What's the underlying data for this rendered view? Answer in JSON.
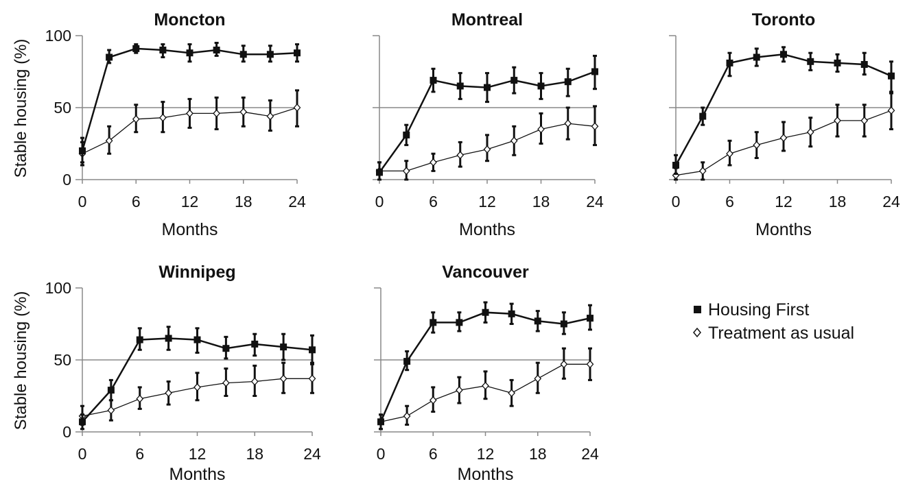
{
  "chart_data": {
    "type": "line",
    "y_axis_label": "Stable housing (%)",
    "x_axis_label": "Months",
    "y_ticks": [
      0,
      50,
      100
    ],
    "x_ticks": [
      0,
      6,
      12,
      18,
      24
    ],
    "ylim": [
      0,
      100
    ],
    "xlim": [
      0,
      24
    ],
    "reference_line_y": 50,
    "legend": {
      "placement": "right",
      "entries": [
        {
          "label": "Housing First",
          "marker": "filled-square"
        },
        {
          "label": "Treatment as usual",
          "marker": "open-diamond"
        }
      ]
    },
    "x": [
      0,
      3,
      6,
      9,
      12,
      15,
      18,
      21,
      24
    ],
    "panels": [
      {
        "title": "Moncton",
        "series": [
          {
            "name": "Housing First",
            "values": [
              20,
              85,
              91,
              90,
              88,
              90,
              87,
              87,
              88
            ],
            "err_low": [
              12,
              81,
              88,
              85,
              82,
              86,
              82,
              82,
              82
            ],
            "err_high": [
              29,
              90,
              94,
              94,
              94,
              95,
              93,
              93,
              94
            ]
          },
          {
            "name": "Treatment as usual",
            "values": [
              18,
              27,
              42,
              43,
              46,
              46,
              47,
              44,
              50
            ],
            "err_low": [
              10,
              18,
              33,
              33,
              36,
              35,
              37,
              34,
              37
            ],
            "err_high": [
              26,
              37,
              52,
              54,
              56,
              57,
              57,
              55,
              62
            ]
          }
        ]
      },
      {
        "title": "Montreal",
        "series": [
          {
            "name": "Housing First",
            "values": [
              5,
              31,
              69,
              65,
              64,
              69,
              65,
              68,
              75
            ],
            "err_low": [
              0,
              24,
              61,
              56,
              54,
              60,
              56,
              58,
              63
            ],
            "err_high": [
              12,
              38,
              77,
              74,
              74,
              78,
              74,
              77,
              86
            ]
          },
          {
            "name": "Treatment as usual",
            "values": [
              6,
              6,
              12,
              17,
              21,
              27,
              35,
              39,
              37
            ],
            "err_low": [
              0,
              0,
              6,
              9,
              13,
              17,
              25,
              28,
              24
            ],
            "err_high": [
              12,
              13,
              18,
              26,
              31,
              37,
              46,
              50,
              51
            ]
          }
        ]
      },
      {
        "title": "Toronto",
        "series": [
          {
            "name": "Housing First",
            "values": [
              10,
              44,
              81,
              85,
              87,
              82,
              81,
              80,
              72
            ],
            "err_low": [
              4,
              38,
              72,
              79,
              82,
              76,
              75,
              73,
              61
            ],
            "err_high": [
              17,
              50,
              88,
              91,
              92,
              88,
              87,
              88,
              82
            ]
          },
          {
            "name": "Treatment as usual",
            "values": [
              3,
              6,
              18,
              24,
              29,
              33,
              41,
              41,
              48
            ],
            "err_low": [
              0,
              0,
              10,
              15,
              20,
              23,
              30,
              30,
              35
            ],
            "err_high": [
              8,
              12,
              27,
              33,
              40,
              43,
              52,
              52,
              60
            ]
          }
        ]
      },
      {
        "title": "Winnipeg",
        "series": [
          {
            "name": "Housing First",
            "values": [
              7,
              29,
              64,
              65,
              64,
              58,
              61,
              59,
              57
            ],
            "err_low": [
              2,
              22,
              57,
              57,
              55,
              51,
              53,
              50,
              47
            ],
            "err_high": [
              12,
              36,
              72,
              73,
              72,
              66,
              68,
              68,
              67
            ]
          },
          {
            "name": "Treatment as usual",
            "values": [
              11,
              15,
              23,
              27,
              31,
              34,
              35,
              37,
              37
            ],
            "err_low": [
              5,
              8,
              16,
              19,
              22,
              25,
              25,
              27,
              27
            ],
            "err_high": [
              18,
              22,
              31,
              35,
              41,
              44,
              46,
              48,
              48
            ]
          }
        ]
      },
      {
        "title": "Vancouver",
        "series": [
          {
            "name": "Housing First",
            "values": [
              7,
              49,
              76,
              76,
              83,
              82,
              77,
              75,
              79
            ],
            "err_low": [
              2,
              43,
              69,
              70,
              76,
              75,
              70,
              68,
              71
            ],
            "err_high": [
              12,
              56,
              83,
              83,
              90,
              89,
              84,
              83,
              88
            ]
          },
          {
            "name": "Treatment as usual",
            "values": [
              7,
              11,
              22,
              29,
              32,
              27,
              37,
              47,
              47
            ],
            "err_low": [
              2,
              5,
              14,
              20,
              23,
              18,
              27,
              37,
              36
            ],
            "err_high": [
              12,
              18,
              31,
              38,
              42,
              36,
              48,
              58,
              58
            ]
          }
        ]
      }
    ]
  }
}
